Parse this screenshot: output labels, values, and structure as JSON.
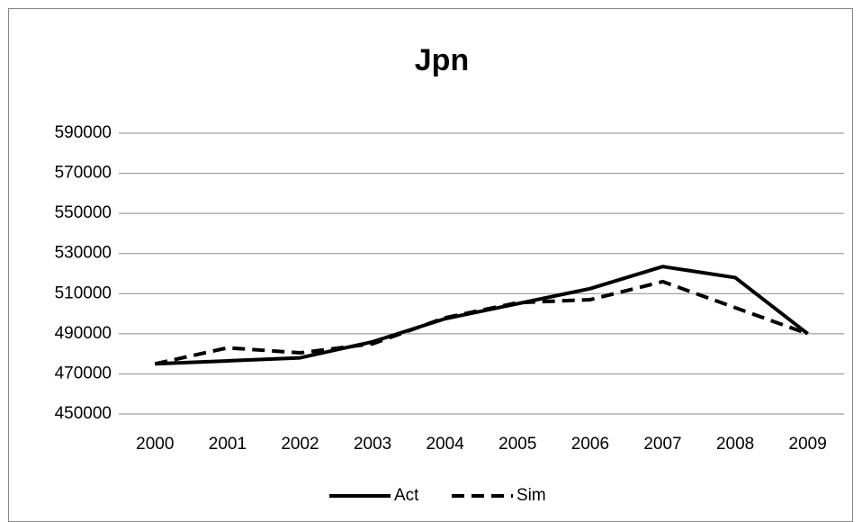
{
  "chart_data": {
    "type": "line",
    "title": "Jpn",
    "categories": [
      "2000",
      "2001",
      "2002",
      "2003",
      "2004",
      "2005",
      "2006",
      "2007",
      "2008",
      "2009"
    ],
    "series": [
      {
        "name": "Act",
        "color": "#000000",
        "dash": false,
        "values": [
          475000,
          476500,
          478000,
          486000,
          497500,
          505000,
          512500,
          523500,
          518000,
          490000
        ]
      },
      {
        "name": "Sim",
        "color": "#000000",
        "dash": true,
        "values": [
          475000,
          483000,
          480500,
          485000,
          498000,
          505500,
          507000,
          516000,
          503000,
          490000
        ]
      }
    ],
    "ylim": [
      450000,
      590000
    ],
    "yticks": [
      450000,
      470000,
      490000,
      510000,
      530000,
      550000,
      570000,
      590000
    ],
    "grid": true,
    "legend": "bottom"
  }
}
